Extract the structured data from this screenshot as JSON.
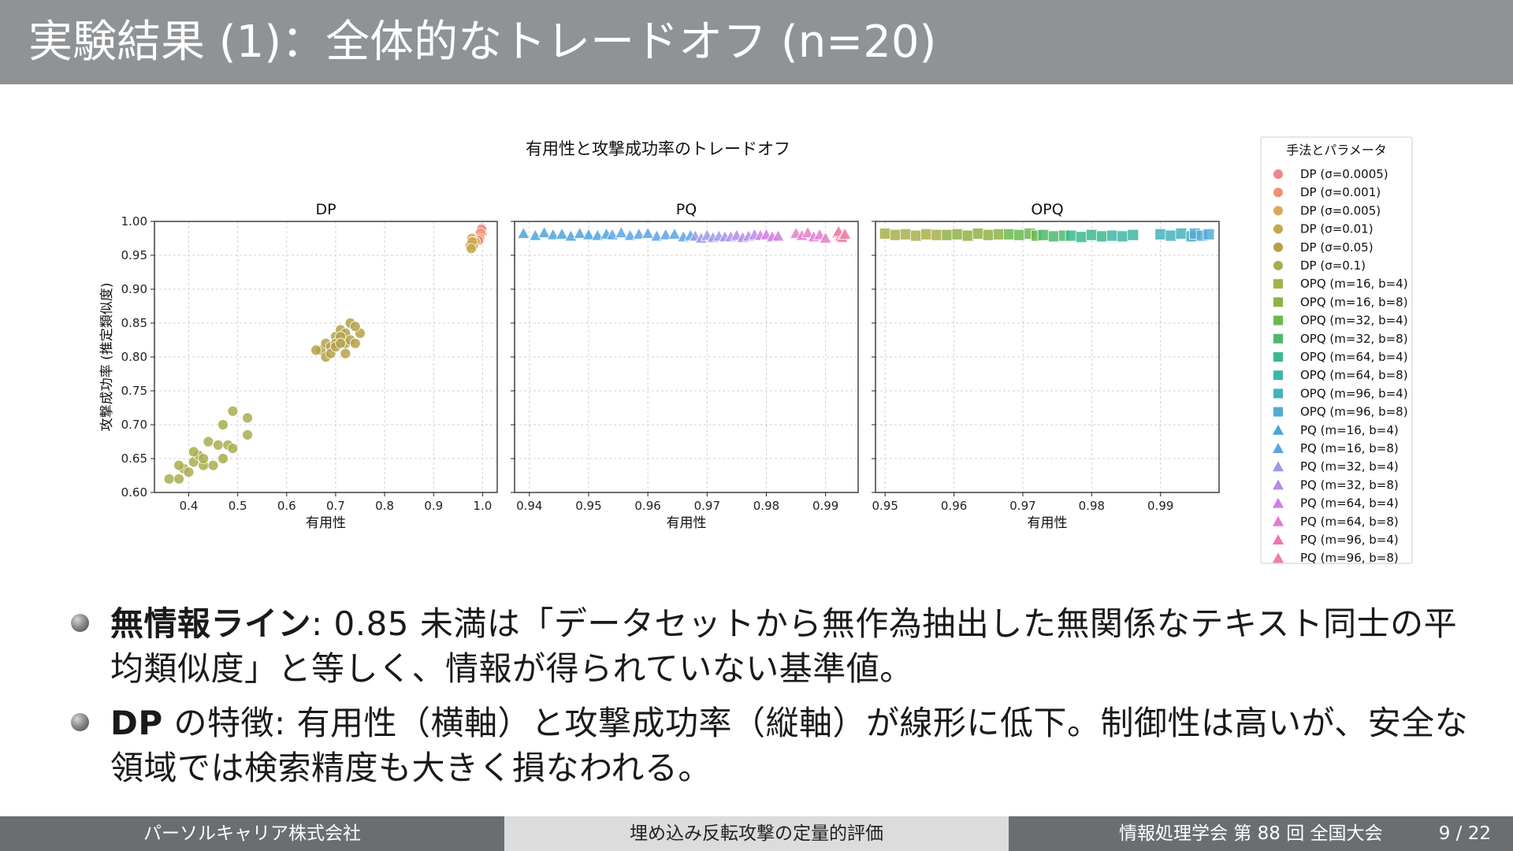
{
  "slide": {
    "title": "実験結果 (1)：全体的なトレードオフ (n=20)"
  },
  "chart_data": {
    "type": "scatter",
    "title": "有用性と攻撃成功率のトレードオフ",
    "ylabel": "攻撃成功率 (推定類似度)",
    "ylim": [
      0.6,
      1.0
    ],
    "yticks": [
      "1.00",
      "0.95",
      "0.90",
      "0.85",
      "0.80",
      "0.75",
      "0.70",
      "0.65",
      "0.60"
    ],
    "grid": true,
    "panels": [
      {
        "title": "DP",
        "xlabel": "有用性",
        "xlim": [
          0.33,
          1.03
        ],
        "xticks": [
          "0.4",
          "0.5",
          "0.6",
          "0.7",
          "0.8",
          "0.9",
          "1.0"
        ],
        "series": [
          {
            "name": "DP (σ=0.0005)",
            "marker": "circle",
            "color": "#f0868b",
            "x": [
              0.997,
              0.998,
              0.999,
              0.996,
              0.998
            ],
            "y": [
              0.985,
              0.99,
              0.982,
              0.978,
              0.988
            ]
          },
          {
            "name": "DP (σ=0.001)",
            "marker": "circle",
            "color": "#ee9072",
            "x": [
              0.993,
              0.995,
              0.996,
              0.994,
              0.992
            ],
            "y": [
              0.98,
              0.978,
              0.983,
              0.975,
              0.972
            ]
          },
          {
            "name": "DP (σ=0.005)",
            "marker": "circle",
            "color": "#dba65c",
            "x": [
              0.98,
              0.983,
              0.978,
              0.985,
              0.981
            ],
            "y": [
              0.972,
              0.968,
              0.975,
              0.97,
              0.964
            ]
          },
          {
            "name": "DP (σ=0.01)",
            "marker": "circle",
            "color": "#c4a84e",
            "x": [
              0.975,
              0.979,
              0.977
            ],
            "y": [
              0.965,
              0.97,
              0.96
            ]
          },
          {
            "name": "DP (σ=0.05)",
            "marker": "circle",
            "color": "#b4a24a",
            "x": [
              0.67,
              0.68,
              0.69,
              0.7,
              0.7,
              0.71,
              0.72,
              0.72,
              0.73,
              0.73,
              0.74,
              0.75,
              0.68,
              0.69,
              0.7,
              0.71,
              0.72,
              0.66,
              0.74,
              0.71
            ],
            "y": [
              0.81,
              0.82,
              0.815,
              0.83,
              0.82,
              0.84,
              0.82,
              0.835,
              0.825,
              0.85,
              0.82,
              0.835,
              0.8,
              0.805,
              0.815,
              0.83,
              0.805,
              0.81,
              0.845,
              0.82
            ]
          },
          {
            "name": "DP (σ=0.1)",
            "marker": "circle",
            "color": "#a9ad4e",
            "x": [
              0.36,
              0.38,
              0.39,
              0.4,
              0.41,
              0.42,
              0.43,
              0.44,
              0.46,
              0.47,
              0.47,
              0.48,
              0.49,
              0.49,
              0.52,
              0.52,
              0.38,
              0.41,
              0.43,
              0.45
            ],
            "y": [
              0.62,
              0.62,
              0.635,
              0.63,
              0.645,
              0.655,
              0.64,
              0.675,
              0.67,
              0.7,
              0.65,
              0.67,
              0.72,
              0.665,
              0.71,
              0.685,
              0.64,
              0.66,
              0.65,
              0.64
            ]
          }
        ]
      },
      {
        "title": "PQ",
        "xlabel": "有用性",
        "xlim": [
          0.9375,
          0.9955
        ],
        "xticks": [
          "0.94",
          "0.95",
          "0.96",
          "0.97",
          "0.98",
          "0.99"
        ],
        "series": [
          {
            "name": "PQ (m=16, b=4)",
            "marker": "triangle",
            "color": "#4aa5dc",
            "x": [
              0.939,
              0.941,
              0.9425,
              0.944,
              0.9455,
              0.947,
              0.9485,
              0.95,
              0.9515,
              0.953
            ],
            "y": [
              0.982,
              0.979,
              0.983,
              0.98,
              0.981,
              0.978,
              0.982,
              0.98,
              0.979,
              0.981
            ]
          },
          {
            "name": "PQ (m=16, b=8)",
            "marker": "triangle",
            "color": "#5ba3e6",
            "x": [
              0.954,
              0.9555,
              0.957,
              0.9585,
              0.96,
              0.9615,
              0.963,
              0.9645,
              0.966,
              0.9672
            ],
            "y": [
              0.98,
              0.983,
              0.979,
              0.981,
              0.982,
              0.978,
              0.98,
              0.981,
              0.977,
              0.979
            ]
          },
          {
            "name": "PQ (m=32, b=4)",
            "marker": "triangle",
            "color": "#9a9ae8",
            "x": [
              0.968,
              0.969,
              0.97,
              0.971,
              0.972,
              0.973
            ],
            "y": [
              0.978,
              0.975,
              0.979,
              0.976,
              0.978,
              0.977
            ]
          },
          {
            "name": "PQ (m=32, b=8)",
            "marker": "triangle",
            "color": "#b58ce6",
            "x": [
              0.974,
              0.975,
              0.976,
              0.977,
              0.978
            ],
            "y": [
              0.977,
              0.979,
              0.976,
              0.978,
              0.98
            ]
          },
          {
            "name": "PQ (m=64, b=4)",
            "marker": "triangle",
            "color": "#d27de0",
            "x": [
              0.979,
              0.98,
              0.981,
              0.982
            ],
            "y": [
              0.979,
              0.98,
              0.977,
              0.978
            ]
          },
          {
            "name": "PQ (m=64, b=8)",
            "marker": "triangle",
            "color": "#e47bd2",
            "x": [
              0.985,
              0.986,
              0.987,
              0.988,
              0.989,
              0.99
            ],
            "y": [
              0.982,
              0.979,
              0.983,
              0.977,
              0.98,
              0.975
            ]
          },
          {
            "name": "PQ (m=96, b=4)",
            "marker": "triangle",
            "color": "#ec78b0",
            "x": [
              0.992,
              0.9925,
              0.993
            ],
            "y": [
              0.983,
              0.978,
              0.98
            ]
          },
          {
            "name": "PQ (m=96, b=8)",
            "marker": "triangle",
            "color": "#f17e9c",
            "x": [
              0.9922,
              0.9928,
              0.9933
            ],
            "y": [
              0.985,
              0.976,
              0.981
            ]
          }
        ]
      },
      {
        "title": "OPQ",
        "xlabel": "有用性",
        "xlim": [
          0.9486,
          0.9985
        ],
        "xticks": [
          "0.95",
          "0.96",
          "0.97",
          "0.98",
          "0.99"
        ],
        "series": [
          {
            "name": "OPQ (m=16, b=4)",
            "marker": "square",
            "color": "#a8b04a",
            "x": [
              0.95,
              0.9515,
              0.953,
              0.9545,
              0.956,
              0.9575
            ],
            "y": [
              0.982,
              0.98,
              0.981,
              0.979,
              0.981,
              0.98
            ]
          },
          {
            "name": "OPQ (m=16, b=8)",
            "marker": "square",
            "color": "#8fb247",
            "x": [
              0.959,
              0.9605,
              0.962,
              0.9635,
              0.965,
              0.9665
            ],
            "y": [
              0.98,
              0.981,
              0.979,
              0.982,
              0.98,
              0.981
            ]
          },
          {
            "name": "OPQ (m=32, b=4)",
            "marker": "square",
            "color": "#6bb84f",
            "x": [
              0.968,
              0.9695,
              0.971,
              0.972
            ],
            "y": [
              0.981,
              0.98,
              0.982,
              0.979
            ]
          },
          {
            "name": "OPQ (m=32, b=8)",
            "marker": "square",
            "color": "#4fb86e",
            "x": [
              0.973,
              0.9745,
              0.976
            ],
            "y": [
              0.98,
              0.978,
              0.979
            ]
          },
          {
            "name": "OPQ (m=64, b=4)",
            "marker": "square",
            "color": "#3cb88f",
            "x": [
              0.977,
              0.9785,
              0.98,
              0.9815
            ],
            "y": [
              0.979,
              0.977,
              0.98,
              0.978
            ]
          },
          {
            "name": "OPQ (m=64, b=8)",
            "marker": "square",
            "color": "#3fb5a6",
            "x": [
              0.983,
              0.9845,
              0.986
            ],
            "y": [
              0.979,
              0.978,
              0.98
            ]
          },
          {
            "name": "OPQ (m=96, b=4)",
            "marker": "square",
            "color": "#45b2bd",
            "x": [
              0.99,
              0.9915,
              0.993,
              0.9945
            ],
            "y": [
              0.981,
              0.979,
              0.982,
              0.978
            ]
          },
          {
            "name": "OPQ (m=96, b=8)",
            "marker": "square",
            "color": "#52acd6",
            "x": [
              0.995,
              0.996,
              0.997
            ],
            "y": [
              0.982,
              0.979,
              0.981
            ]
          }
        ]
      }
    ],
    "legend": {
      "title": "手法とパラメータ",
      "placement": "right",
      "entries": [
        {
          "label": "DP (σ=0.0005)",
          "marker": "circle",
          "color": "#f0868b"
        },
        {
          "label": "DP (σ=0.001)",
          "marker": "circle",
          "color": "#ee9072"
        },
        {
          "label": "DP (σ=0.005)",
          "marker": "circle",
          "color": "#dba65c"
        },
        {
          "label": "DP (σ=0.01)",
          "marker": "circle",
          "color": "#c4a84e"
        },
        {
          "label": "DP (σ=0.05)",
          "marker": "circle",
          "color": "#b4a24a"
        },
        {
          "label": "DP (σ=0.1)",
          "marker": "circle",
          "color": "#a9ad4e"
        },
        {
          "label": "OPQ (m=16, b=4)",
          "marker": "square",
          "color": "#a8b04a"
        },
        {
          "label": "OPQ (m=16, b=8)",
          "marker": "square",
          "color": "#8fb247"
        },
        {
          "label": "OPQ (m=32, b=4)",
          "marker": "square",
          "color": "#6bb84f"
        },
        {
          "label": "OPQ (m=32, b=8)",
          "marker": "square",
          "color": "#4fb86e"
        },
        {
          "label": "OPQ (m=64, b=4)",
          "marker": "square",
          "color": "#3cb88f"
        },
        {
          "label": "OPQ (m=64, b=8)",
          "marker": "square",
          "color": "#3fb5a6"
        },
        {
          "label": "OPQ (m=96, b=4)",
          "marker": "square",
          "color": "#45b2bd"
        },
        {
          "label": "OPQ (m=96, b=8)",
          "marker": "square",
          "color": "#52acd6"
        },
        {
          "label": "PQ (m=16, b=4)",
          "marker": "triangle",
          "color": "#4aa5dc"
        },
        {
          "label": "PQ (m=16, b=8)",
          "marker": "triangle",
          "color": "#5ba3e6"
        },
        {
          "label": "PQ (m=32, b=4)",
          "marker": "triangle",
          "color": "#9a9ae8"
        },
        {
          "label": "PQ (m=32, b=8)",
          "marker": "triangle",
          "color": "#b58ce6"
        },
        {
          "label": "PQ (m=64, b=4)",
          "marker": "triangle",
          "color": "#d27de0"
        },
        {
          "label": "PQ (m=64, b=8)",
          "marker": "triangle",
          "color": "#e47bd2"
        },
        {
          "label": "PQ (m=96, b=4)",
          "marker": "triangle",
          "color": "#ec78b0"
        },
        {
          "label": "PQ (m=96, b=8)",
          "marker": "triangle",
          "color": "#f17e9c"
        }
      ]
    }
  },
  "bullets": [
    {
      "label": "無情報ライン",
      "text": ": 0.85 未満は「データセットから無作為抽出した無関係なテキスト同士の平均類似度」と等しく、情報が得られていない基準値。"
    },
    {
      "label": "DP",
      "text": " の特徴: 有用性（横軸）と攻撃成功率（縦軸）が線形に低下。制御性は高いが、安全な領域では検索精度も大きく損なわれる。"
    }
  ],
  "footer": {
    "left": "パーソルキャリア株式会社",
    "middle": "埋め込み反転攻撃の定量的評価",
    "right": "情報処理学会 第 88 回 全国大会",
    "page": "9 / 22"
  },
  "colors": {
    "title_bar": "#909396",
    "footer_dark": "#6b6e71",
    "footer_light": "#dcdcdc"
  }
}
